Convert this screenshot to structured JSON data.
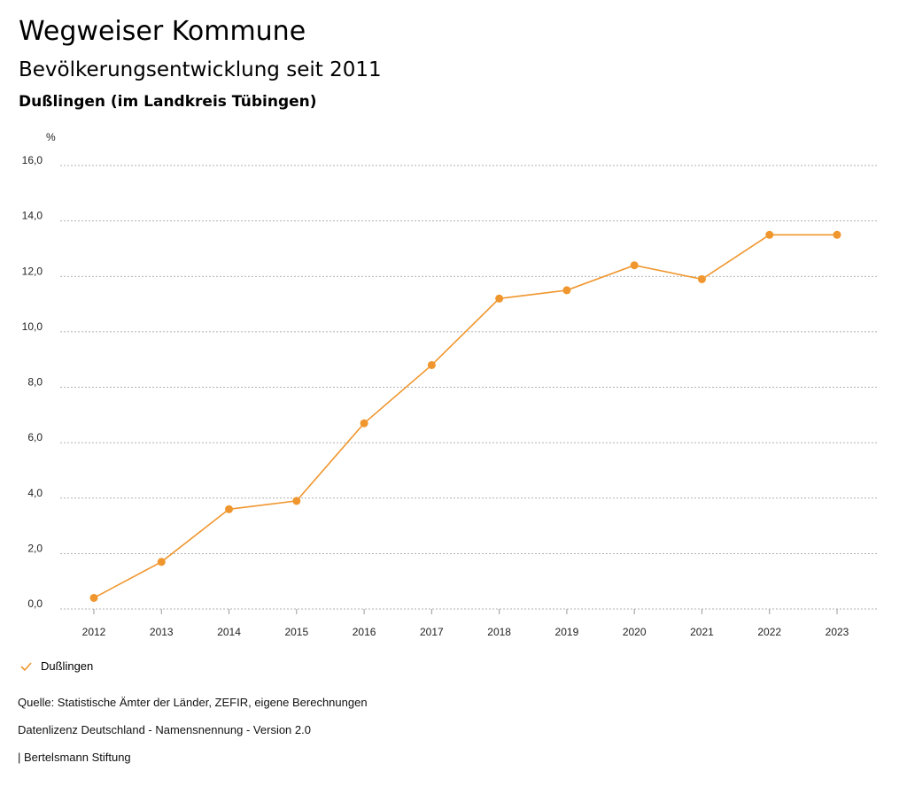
{
  "header": {
    "title": "Wegweiser Kommune",
    "subtitle": "Bevölkerungsentwicklung seit 2011",
    "region": "Dußlingen (im Landkreis Tübingen)"
  },
  "chart_data": {
    "type": "line",
    "ylabel": "%",
    "ylim": [
      0,
      16
    ],
    "yticks": [
      "0,0",
      "2,0",
      "4,0",
      "6,0",
      "8,0",
      "10,0",
      "12,0",
      "14,0",
      "16,0"
    ],
    "x": [
      "2012",
      "2013",
      "2014",
      "2015",
      "2016",
      "2017",
      "2018",
      "2019",
      "2020",
      "2021",
      "2022",
      "2023"
    ],
    "series": [
      {
        "name": "Dußlingen",
        "color": "#f0962e",
        "values": [
          0.4,
          1.7,
          3.6,
          3.9,
          6.7,
          8.8,
          11.2,
          11.5,
          12.4,
          11.9,
          13.5,
          13.5
        ]
      }
    ],
    "grid": true,
    "legend": "bottom-left"
  },
  "footer": {
    "source": "Quelle: Statistische Ämter der Länder, ZEFIR, eigene Berechnungen",
    "license": "Datenlizenz Deutschland - Namensnennung - Version 2.0",
    "brand": "| Bertelsmann Stiftung"
  }
}
